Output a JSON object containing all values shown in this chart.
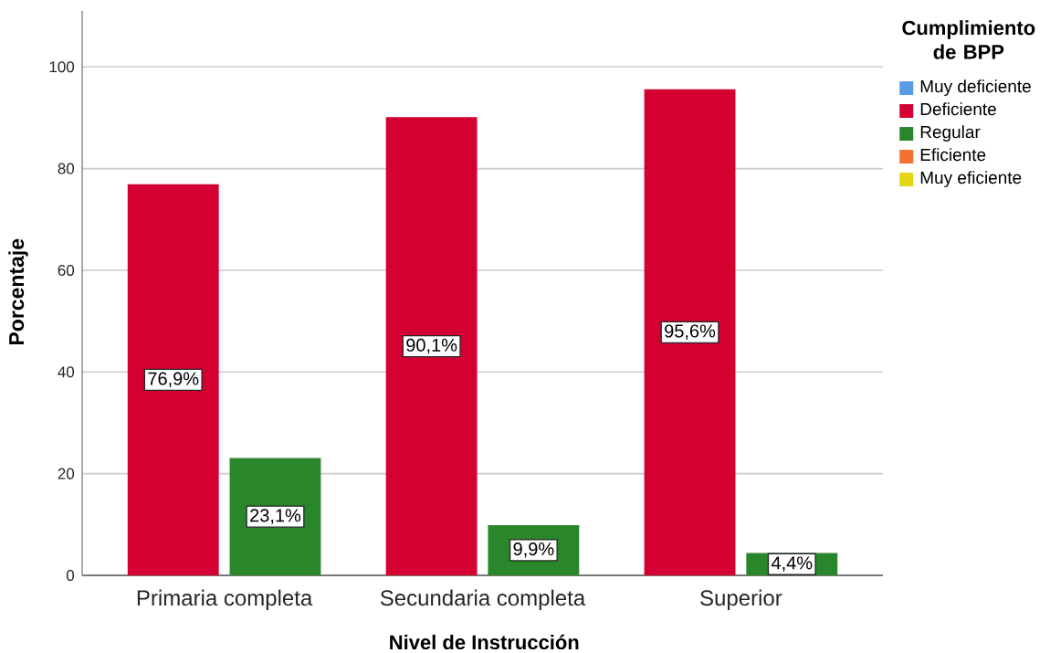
{
  "chart_data": {
    "type": "bar",
    "xlabel": "Nivel de Instrucción",
    "ylabel": "Porcentaje",
    "legend_title": "Cumplimiento de BPP",
    "categories": [
      "Primaria completa",
      "Secundaria completa",
      "Superior"
    ],
    "series": [
      {
        "name": "Muy deficiente",
        "color": "#5a9be6",
        "values": [
          null,
          null,
          null
        ]
      },
      {
        "name": "Deficiente",
        "color": "#d50032",
        "values": [
          76.9,
          90.1,
          95.6
        ],
        "value_labels": [
          "76,9%",
          "90,1%",
          "95,6%"
        ]
      },
      {
        "name": "Regular",
        "color": "#2a862a",
        "values": [
          23.1,
          9.9,
          4.4
        ],
        "value_labels": [
          "23,1%",
          "9,9%",
          "4,4%"
        ]
      },
      {
        "name": "Eficiente",
        "color": "#f27030",
        "values": [
          null,
          null,
          null
        ]
      },
      {
        "name": "Muy eficiente",
        "color": "#e3d617",
        "values": [
          null,
          null,
          null
        ]
      }
    ],
    "ylim": [
      0,
      111
    ],
    "yticks": [
      0,
      20,
      40,
      60,
      80,
      100
    ],
    "grid": "y",
    "legend": "right"
  }
}
